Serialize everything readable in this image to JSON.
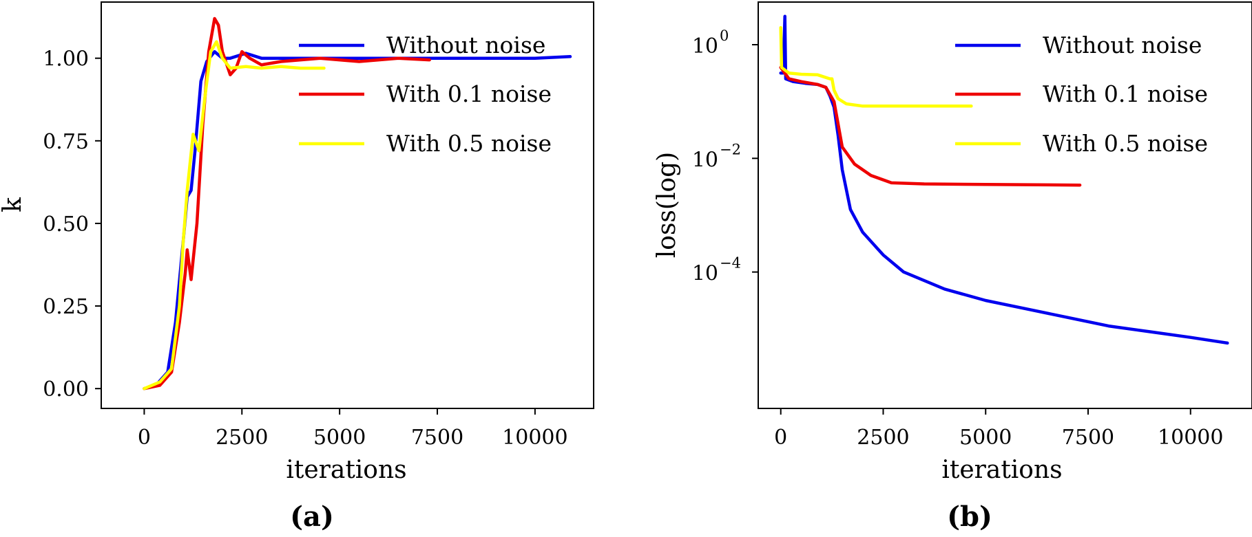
{
  "chart_data": [
    {
      "type": "line",
      "panel_label": "(a)",
      "xlabel": "iterations",
      "ylabel": "k",
      "xlim": [
        -1100,
        11500
      ],
      "ylim": [
        -0.06,
        1.17
      ],
      "xticks": [
        0,
        2500,
        5000,
        7500,
        10000
      ],
      "xtick_labels": [
        "0",
        "2500",
        "5000",
        "7500",
        "10000"
      ],
      "yticks": [
        0,
        0.25,
        0.5,
        0.75,
        1.0
      ],
      "ytick_labels": [
        "0.00",
        "0.25",
        "0.50",
        "0.75",
        "1.00"
      ],
      "y_scale": "linear",
      "grid": false,
      "legend_position": "top-right",
      "series": [
        {
          "name": "Without noise",
          "color": "#0000ee",
          "points": [
            [
              0,
              0
            ],
            [
              300,
              0.01
            ],
            [
              600,
              0.05
            ],
            [
              800,
              0.2
            ],
            [
              1000,
              0.45
            ],
            [
              1100,
              0.58
            ],
            [
              1200,
              0.6
            ],
            [
              1300,
              0.72
            ],
            [
              1450,
              0.93
            ],
            [
              1600,
              0.99
            ],
            [
              1800,
              1.02
            ],
            [
              2000,
              1.0
            ],
            [
              2200,
              1.0
            ],
            [
              2600,
              1.015
            ],
            [
              3000,
              1.0
            ],
            [
              3500,
              1.0
            ],
            [
              4500,
              1.0
            ],
            [
              6000,
              1.0
            ],
            [
              7500,
              1.0
            ],
            [
              9000,
              1.0
            ],
            [
              10000,
              1.0
            ],
            [
              10900,
              1.005
            ]
          ]
        },
        {
          "name": "With 0.1 noise",
          "color": "#ee0000",
          "points": [
            [
              0,
              0
            ],
            [
              400,
              0.01
            ],
            [
              700,
              0.05
            ],
            [
              900,
              0.2
            ],
            [
              1050,
              0.35
            ],
            [
              1100,
              0.42
            ],
            [
              1200,
              0.33
            ],
            [
              1350,
              0.5
            ],
            [
              1500,
              0.8
            ],
            [
              1650,
              1.02
            ],
            [
              1800,
              1.12
            ],
            [
              1900,
              1.1
            ],
            [
              2000,
              1.02
            ],
            [
              2200,
              0.95
            ],
            [
              2350,
              0.97
            ],
            [
              2500,
              1.02
            ],
            [
              2700,
              1.0
            ],
            [
              3000,
              0.98
            ],
            [
              3500,
              0.99
            ],
            [
              4500,
              1.0
            ],
            [
              5500,
              0.99
            ],
            [
              6500,
              1.0
            ],
            [
              7300,
              0.995
            ]
          ]
        },
        {
          "name": "With 0.5 noise",
          "color": "#ffff00",
          "points": [
            [
              0,
              0
            ],
            [
              400,
              0.02
            ],
            [
              700,
              0.06
            ],
            [
              900,
              0.25
            ],
            [
              1000,
              0.45
            ],
            [
              1100,
              0.6
            ],
            [
              1250,
              0.77
            ],
            [
              1400,
              0.72
            ],
            [
              1550,
              0.88
            ],
            [
              1700,
              1.02
            ],
            [
              1850,
              1.05
            ],
            [
              2000,
              1.0
            ],
            [
              2200,
              0.97
            ],
            [
              2600,
              0.975
            ],
            [
              3000,
              0.97
            ],
            [
              3500,
              0.975
            ],
            [
              4000,
              0.97
            ],
            [
              4600,
              0.97
            ]
          ]
        }
      ]
    },
    {
      "type": "line",
      "panel_label": "(b)",
      "xlabel": "iterations",
      "ylabel": "loss(log)",
      "xlim": [
        -550,
        11500
      ],
      "y_scale": "log",
      "ylim_log10": [
        -6.4,
        0.75
      ],
      "xticks": [
        0,
        2500,
        5000,
        7500,
        10000
      ],
      "xtick_labels": [
        "0",
        "2500",
        "5000",
        "7500",
        "10000"
      ],
      "ytick_exponents": [
        0,
        -2,
        -4
      ],
      "ytick_base": "10",
      "ytick_labels": [
        "10",
        "10",
        "10"
      ],
      "ytick_exponent_labels": [
        "0",
        "−2",
        "−4"
      ],
      "grid": false,
      "legend_position": "top-right",
      "series": [
        {
          "name": "Without noise",
          "color": "#0000ee",
          "points_log10": [
            [
              0,
              -0.5
            ],
            [
              60,
              -0.5
            ],
            [
              100,
              0.5
            ],
            [
              120,
              -0.6
            ],
            [
              300,
              -0.65
            ],
            [
              600,
              -0.68
            ],
            [
              900,
              -0.7
            ],
            [
              1100,
              -0.75
            ],
            [
              1200,
              -0.9
            ],
            [
              1300,
              -1.1
            ],
            [
              1400,
              -1.6
            ],
            [
              1500,
              -2.2
            ],
            [
              1700,
              -2.9
            ],
            [
              2000,
              -3.3
            ],
            [
              2500,
              -3.7
            ],
            [
              3000,
              -4.0
            ],
            [
              4000,
              -4.3
            ],
            [
              5000,
              -4.5
            ],
            [
              6000,
              -4.65
            ],
            [
              7000,
              -4.8
            ],
            [
              8000,
              -4.95
            ],
            [
              9000,
              -5.05
            ],
            [
              10000,
              -5.15
            ],
            [
              10900,
              -5.25
            ]
          ]
        },
        {
          "name": "With 0.1 noise",
          "color": "#ee0000",
          "points_log10": [
            [
              0,
              -0.4
            ],
            [
              200,
              -0.6
            ],
            [
              500,
              -0.65
            ],
            [
              900,
              -0.7
            ],
            [
              1100,
              -0.75
            ],
            [
              1300,
              -1.0
            ],
            [
              1500,
              -1.8
            ],
            [
              1800,
              -2.1
            ],
            [
              2200,
              -2.3
            ],
            [
              2700,
              -2.43
            ],
            [
              3500,
              -2.45
            ],
            [
              5000,
              -2.46
            ],
            [
              7300,
              -2.47
            ]
          ]
        },
        {
          "name": "With 0.5 noise",
          "color": "#ffff00",
          "points_log10": [
            [
              0,
              0.3
            ],
            [
              20,
              -0.4
            ],
            [
              200,
              -0.5
            ],
            [
              500,
              -0.52
            ],
            [
              900,
              -0.53
            ],
            [
              1200,
              -0.6
            ],
            [
              1250,
              -0.6
            ],
            [
              1300,
              -0.8
            ],
            [
              1400,
              -0.95
            ],
            [
              1600,
              -1.04
            ],
            [
              2000,
              -1.08
            ],
            [
              3000,
              -1.08
            ],
            [
              4000,
              -1.08
            ],
            [
              4650,
              -1.08
            ]
          ]
        }
      ]
    }
  ]
}
